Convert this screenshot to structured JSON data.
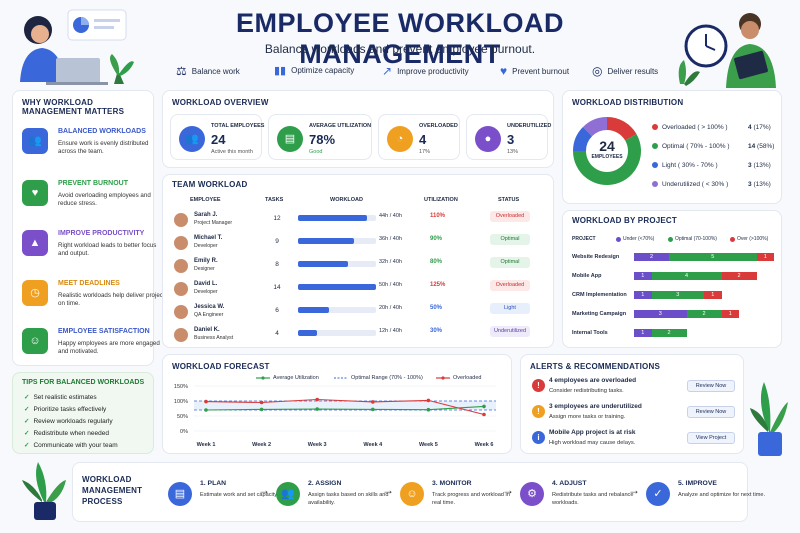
{
  "header": {
    "title": "EMPLOYEE WORKLOAD MANAGEMENT",
    "subtitle": "Balance workloads and prevent employee burnout."
  },
  "features": [
    {
      "label": "Balance work",
      "icon": "scale-icon"
    },
    {
      "label": "Optimize capacity",
      "icon": "bar-chart-icon"
    },
    {
      "label": "Improve productivity",
      "icon": "trend-up-icon"
    },
    {
      "label": "Prevent burnout",
      "icon": "heart-icon"
    },
    {
      "label": "Deliver results",
      "icon": "target-icon"
    }
  ],
  "why": {
    "title_line1": "WHY WORKLOAD",
    "title_line2": "MANAGEMENT MATTERS",
    "items": [
      {
        "title": "BALANCED WORKLOADS",
        "desc": "Ensure work is evenly distributed across the team.",
        "color": "#3a67d9"
      },
      {
        "title": "PREVENT BURNOUT",
        "desc": "Avoid overloading employees and reduce stress.",
        "color": "#2e9e4a"
      },
      {
        "title": "IMPROVE PRODUCTIVITY",
        "desc": "Right workload leads to better focus and output.",
        "color": "#7a4fc9"
      },
      {
        "title": "MEET DEADLINES",
        "desc": "Realistic workloads help deliver projects on time.",
        "color": "#f0a020"
      },
      {
        "title": "EMPLOYEE SATISFACTION",
        "desc": "Happy employees are more engaged and motivated.",
        "color": "#2e9e4a"
      }
    ]
  },
  "tips": {
    "title": "TIPS FOR BALANCED WORKLOADS",
    "items": [
      "Set realistic estimates",
      "Prioritize tasks effectively",
      "Review workloads regularly",
      "Redistribute when needed",
      "Communicate with your team"
    ]
  },
  "overview": {
    "title": "WORKLOAD OVERVIEW",
    "stats": [
      {
        "label": "TOTAL EMPLOYEES",
        "value": "24",
        "sub": "Active this month",
        "color": "#3a67d9"
      },
      {
        "label": "AVERAGE UTILIZATION",
        "value": "78%",
        "sub": "Good",
        "color": "#2e9e4a"
      },
      {
        "label": "OVERLOADED",
        "value": "4",
        "sub": "17%",
        "color": "#f0a020"
      },
      {
        "label": "UNDERUTILIZED",
        "value": "3",
        "sub": "13%",
        "color": "#7a4fc9"
      }
    ]
  },
  "team": {
    "title": "TEAM WORKLOAD",
    "headers": [
      "EMPLOYEE",
      "TASKS",
      "WORKLOAD",
      "UTILIZATION",
      "STATUS"
    ],
    "rows": [
      {
        "name": "Sarah J.",
        "role": "Project Manager",
        "tasks": "12",
        "hours": "44h / 40h",
        "pct": 110,
        "util": "110%",
        "status": "Overloaded"
      },
      {
        "name": "Michael T.",
        "role": "Developer",
        "tasks": "9",
        "hours": "36h / 40h",
        "pct": 90,
        "util": "90%",
        "status": "Optimal"
      },
      {
        "name": "Emily R.",
        "role": "Designer",
        "tasks": "8",
        "hours": "32h / 40h",
        "pct": 80,
        "util": "80%",
        "status": "Optimal"
      },
      {
        "name": "David L.",
        "role": "Developer",
        "tasks": "14",
        "hours": "50h / 40h",
        "pct": 125,
        "util": "125%",
        "status": "Overloaded"
      },
      {
        "name": "Jessica W.",
        "role": "QA Engineer",
        "tasks": "6",
        "hours": "20h / 40h",
        "pct": 50,
        "util": "50%",
        "status": "Light"
      },
      {
        "name": "Daniel K.",
        "role": "Business Analyst",
        "tasks": "4",
        "hours": "12h / 40h",
        "pct": 30,
        "util": "30%",
        "status": "Underutilized"
      }
    ]
  },
  "distribution": {
    "title": "WORKLOAD DISTRIBUTION",
    "center_value": "24",
    "center_label": "EMPLOYEES",
    "items": [
      {
        "label": "Overloaded ( > 100% )",
        "count": "4",
        "pct": "(17%)",
        "value": 4,
        "color": "#d93a3a"
      },
      {
        "label": "Optimal ( 70% - 100% )",
        "count": "14",
        "pct": "(58%)",
        "value": 14,
        "color": "#2e9e4a"
      },
      {
        "label": "Light ( 30% - 70% )",
        "count": "3",
        "pct": "(13%)",
        "value": 3,
        "color": "#3a67d9"
      },
      {
        "label": "Underutilized ( < 30% )",
        "count": "3",
        "pct": "(13%)",
        "value": 3,
        "color": "#8f6fd3"
      }
    ]
  },
  "projects": {
    "title": "WORKLOAD BY PROJECT",
    "col_label": "PROJECT",
    "legend": [
      {
        "label": "Under (<70%)",
        "color": "#6b4fc9"
      },
      {
        "label": "Optimal (70-100%)",
        "color": "#2e9e4a"
      },
      {
        "label": "Over (>100%)",
        "color": "#d93a3a"
      }
    ],
    "rows": [
      {
        "name": "Website Redesign",
        "under": 2,
        "optimal": 5,
        "over": 1
      },
      {
        "name": "Mobile App",
        "under": 1,
        "optimal": 4,
        "over": 2
      },
      {
        "name": "CRM Implementation",
        "under": 1,
        "optimal": 3,
        "over": 1
      },
      {
        "name": "Marketing Campaign",
        "under": 3,
        "optimal": 2,
        "over": 1
      },
      {
        "name": "Internal Tools",
        "under": 1,
        "optimal": 2,
        "over": 0
      }
    ]
  },
  "forecast": {
    "title": "WORKLOAD FORECAST",
    "legend": [
      "Average Utilization",
      "Optimal Range (70% - 100%)",
      "Overloaded"
    ]
  },
  "chart_data": {
    "type": "line",
    "x": [
      "Week 1",
      "Week 2",
      "Week 3",
      "Week 4",
      "Week 5",
      "Week 6"
    ],
    "yticks": [
      "150%",
      "100%",
      "50%",
      "0%"
    ],
    "ylim": [
      0,
      150
    ],
    "series": [
      {
        "name": "Average Utilization",
        "values": [
          70,
          72,
          73,
          72,
          71,
          82
        ],
        "color": "#2e9e4a"
      },
      {
        "name": "Overloaded",
        "values": [
          98,
          95,
          105,
          97,
          102,
          55
        ],
        "color": "#d93a3a"
      }
    ],
    "band": {
      "name": "Optimal Range (70% - 100%)",
      "low": 70,
      "high": 100
    }
  },
  "alerts": {
    "title": "ALERTS & RECOMMENDATIONS",
    "items": [
      {
        "title": "4 employees are overloaded",
        "desc": "Consider redistributing tasks.",
        "button": "Review Now",
        "color": "#d93a3a",
        "icon": "!"
      },
      {
        "title": "3 employees are underutilized",
        "desc": "Assign more tasks or training.",
        "button": "Review Now",
        "color": "#f0a020",
        "icon": "!"
      },
      {
        "title": "Mobile App project is at risk",
        "desc": "High workload may cause delays.",
        "button": "View Project",
        "color": "#3a67d9",
        "icon": "i"
      }
    ]
  },
  "process": {
    "title_line1": "WORKLOAD",
    "title_line2": "MANAGEMENT",
    "title_line3": "PROCESS",
    "steps": [
      {
        "title": "1. PLAN",
        "desc": "Estimate work and set capacity.",
        "color": "#3a67d9",
        "icon": "clipboard-icon"
      },
      {
        "title": "2. ASSIGN",
        "desc": "Assign tasks based on skills and availability.",
        "color": "#2e9e4a",
        "icon": "users-icon"
      },
      {
        "title": "3. MONITOR",
        "desc": "Track progress and workload in real time.",
        "color": "#f0a020",
        "icon": "monitor-icon"
      },
      {
        "title": "4. ADJUST",
        "desc": "Redistribute tasks and rebalance workloads.",
        "color": "#7a4fc9",
        "icon": "adjust-icon"
      },
      {
        "title": "5. IMPROVE",
        "desc": "Analyze and optimize for next time.",
        "color": "#3a67d9",
        "icon": "check-icon"
      }
    ]
  }
}
